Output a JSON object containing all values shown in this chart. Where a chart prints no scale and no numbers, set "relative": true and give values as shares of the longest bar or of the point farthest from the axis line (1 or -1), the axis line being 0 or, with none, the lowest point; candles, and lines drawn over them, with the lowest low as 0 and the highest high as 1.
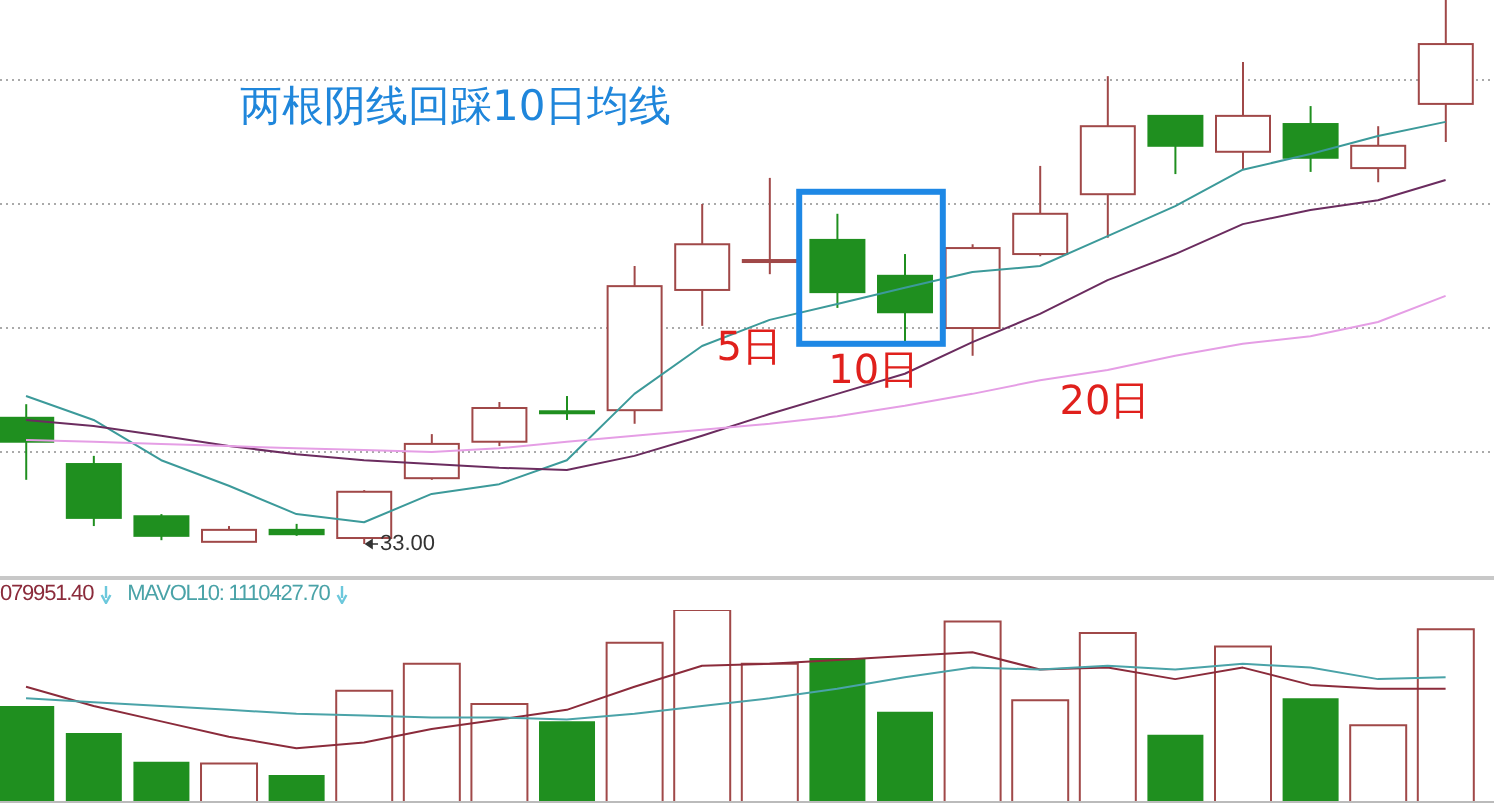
{
  "chart_data": [
    {
      "type": "candlestick",
      "relative": true,
      "grid": "y",
      "categories": [
        null,
        null,
        null,
        null,
        null,
        null,
        null,
        null,
        null,
        null,
        null,
        null,
        null,
        null,
        null,
        null,
        null,
        null,
        null,
        null,
        null,
        null
      ],
      "ohlc": [
        [
          0.232,
          0.257,
          0.118,
          0.188
        ],
        [
          0.147,
          0.162,
          0.033,
          0.048
        ],
        [
          0.051,
          0.055,
          0.007,
          0.015
        ],
        [
          0.004,
          0.033,
          0.004,
          0.026
        ],
        [
          0.026,
          0.037,
          0.015,
          0.018
        ],
        [
          0.011,
          0.099,
          0,
          0.096
        ],
        [
          0.121,
          0.202,
          0.118,
          0.184
        ],
        [
          0.188,
          0.261,
          0.18,
          0.25
        ],
        [
          0.244,
          0.272,
          0.228,
          0.241
        ],
        [
          0.246,
          0.511,
          0.221,
          0.474
        ],
        [
          0.467,
          0.625,
          0.401,
          0.551
        ],
        [
          0.522,
          0.673,
          0.496,
          0.522
        ],
        [
          0.559,
          0.607,
          0.434,
          0.463
        ],
        [
          0.493,
          0.533,
          0.368,
          0.426
        ],
        [
          0.397,
          0.551,
          0.346,
          0.544
        ],
        [
          0.533,
          0.695,
          0.529,
          0.607
        ],
        [
          0.643,
          0.86,
          0.563,
          0.768
        ],
        [
          0.787,
          0.787,
          0.68,
          0.732
        ],
        [
          0.721,
          0.886,
          0.688,
          0.787
        ],
        [
          0.772,
          0.805,
          0.684,
          0.71
        ],
        [
          0.691,
          0.768,
          0.665,
          0.732
        ],
        [
          0.809,
          1,
          0.739,
          0.919
        ]
      ],
      "colors": [
        "#1f8f1f",
        "#1f8f1f",
        "#1f8f1f",
        "#a04848",
        "#1f8f1f",
        "#a04848",
        "#a04848",
        "#a04848",
        "#1f8f1f",
        "#a04848",
        "#a04848",
        "#a04848",
        "#1f8f1f",
        "#1f8f1f",
        "#a04848",
        "#a04848",
        "#a04848",
        "#1f8f1f",
        "#a04848",
        "#1f8f1f",
        "#a04848",
        "#a04848"
      ],
      "series": [
        {
          "name": "5日",
          "type": "line",
          "color": "#3c9a9a",
          "values": [
            0.272,
            0.228,
            0.154,
            0.107,
            0.055,
            0.04,
            0.092,
            0.11,
            0.154,
            0.276,
            0.364,
            0.412,
            0.441,
            0.471,
            0.5,
            0.511,
            0.566,
            0.621,
            0.688,
            0.717,
            0.75,
            0.776
          ]
        },
        {
          "name": "10日",
          "type": "line",
          "color": "#6b2c5f",
          "values": [
            0.228,
            0.217,
            0.199,
            0.18,
            0.165,
            0.154,
            0.147,
            0.14,
            0.136,
            0.162,
            0.199,
            0.239,
            0.276,
            0.313,
            0.371,
            0.423,
            0.485,
            0.533,
            0.588,
            0.614,
            0.632,
            0.669
          ]
        },
        {
          "name": "20日",
          "type": "line",
          "color": "#e59ee5",
          "values": [
            0.191,
            0.188,
            0.184,
            0.18,
            0.176,
            0.173,
            0.169,
            0.176,
            0.188,
            0.199,
            0.21,
            0.221,
            0.235,
            0.254,
            0.276,
            0.301,
            0.32,
            0.346,
            0.368,
            0.382,
            0.408,
            0.456
          ]
        }
      ],
      "annotations": [
        "两根阴线回踩10日均线",
        "33.00"
      ]
    },
    {
      "type": "bar",
      "relative": true,
      "legend": "top left",
      "categories": [
        null,
        null,
        null,
        null,
        null,
        null,
        null,
        null,
        null,
        null,
        null,
        null,
        null,
        null,
        null,
        null,
        null,
        null,
        null,
        null,
        null,
        null
      ],
      "series": [
        {
          "values": [
            0.5,
            0.36,
            0.21,
            0.2,
            0.14,
            0.58,
            0.72,
            0.51,
            0.42,
            0.83,
            1,
            0.72,
            0.75,
            0.47,
            0.94,
            0.53,
            0.88,
            0.35,
            0.81,
            0.54,
            0.4,
            0.9
          ],
          "colors": [
            "#1f8f1f",
            "#1f8f1f",
            "#1f8f1f",
            "#a04848",
            "#1f8f1f",
            "#a04848",
            "#a04848",
            "#a04848",
            "#1f8f1f",
            "#a04848",
            "#a04848",
            "#a04848",
            "#1f8f1f",
            "#1f8f1f",
            "#a04848",
            "#a04848",
            "#a04848",
            "#1f8f1f",
            "#a04848",
            "#1f8f1f",
            "#a04848",
            "#a04848"
          ]
        },
        {
          "name": "079951.40",
          "type": "line",
          "color": "#8b2b3b",
          "values": [
            0.6,
            0.5,
            0.42,
            0.34,
            0.28,
            0.31,
            0.38,
            0.43,
            0.48,
            0.6,
            0.71,
            0.72,
            0.74,
            0.76,
            0.78,
            0.69,
            0.7,
            0.64,
            0.7,
            0.61,
            0.59,
            0.59
          ]
        },
        {
          "name": "MAVOL10: 1110427.70",
          "type": "line",
          "color": "#4aa3a8",
          "values": [
            0.54,
            0.52,
            0.5,
            0.48,
            0.46,
            0.45,
            0.44,
            0.44,
            0.43,
            0.46,
            0.5,
            0.54,
            0.59,
            0.65,
            0.7,
            0.69,
            0.71,
            0.69,
            0.72,
            0.7,
            0.64,
            0.65
          ]
        }
      ]
    }
  ]
}
